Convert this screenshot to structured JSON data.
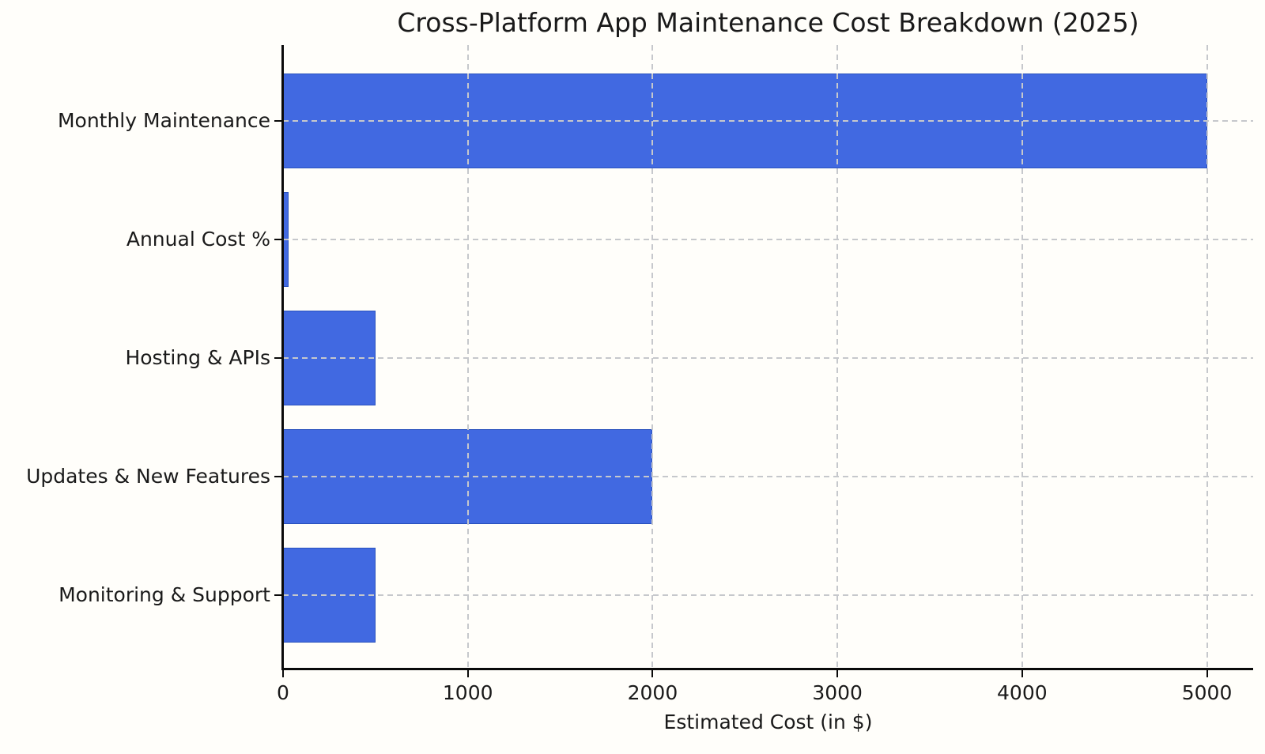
{
  "chart_data": {
    "type": "bar",
    "orientation": "horizontal",
    "title": "Cross-Platform App Maintenance Cost Breakdown (2025)",
    "xlabel": "Estimated Cost (in $)",
    "categories": [
      "Monthly Maintenance",
      "Annual Cost %",
      "Hosting & APIs",
      "Updates & New Features",
      "Monitoring & Support"
    ],
    "values": [
      5000,
      30,
      500,
      2000,
      500
    ],
    "xticks": [
      0,
      1000,
      2000,
      3000,
      4000,
      5000
    ],
    "xlim": [
      0,
      5250
    ],
    "grid": true,
    "grid_style": "dashed",
    "grid_position": "above-bars",
    "legend": "none",
    "bar_color": "#4169e1",
    "bar_edge_color": "#2a52be",
    "grid_color": "#c6c8cc",
    "axis_color": "#0a0a0a",
    "text_color": "#1a1a1a",
    "background_color": "#fffefa"
  }
}
